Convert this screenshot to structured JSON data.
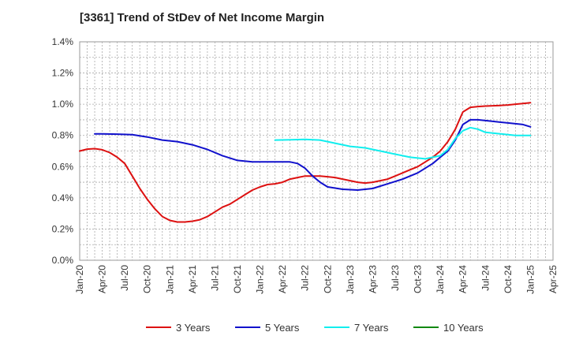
{
  "chart_data": {
    "type": "line",
    "title": "[3361]  Trend of StDev of Net Income Margin",
    "xlabel": "",
    "ylabel": "",
    "x_range": [
      "2020-01",
      "2025-04"
    ],
    "ylim": [
      0,
      0.014
    ],
    "y_ticks": [
      0,
      0.002,
      0.004,
      0.006,
      0.008,
      0.01,
      0.012,
      0.014
    ],
    "y_tick_labels": [
      "0.0%",
      "0.2%",
      "0.4%",
      "0.6%",
      "0.8%",
      "1.0%",
      "1.2%",
      "1.4%"
    ],
    "x_ticks": [
      "2020-01",
      "2020-04",
      "2020-07",
      "2020-10",
      "2021-01",
      "2021-04",
      "2021-07",
      "2021-10",
      "2022-01",
      "2022-04",
      "2022-07",
      "2022-10",
      "2023-01",
      "2023-04",
      "2023-07",
      "2023-10",
      "2024-01",
      "2024-04",
      "2024-07",
      "2024-10",
      "2025-01",
      "2025-04"
    ],
    "x_tick_labels": [
      "Jan-20",
      "Apr-20",
      "Jul-20",
      "Oct-20",
      "Jan-21",
      "Apr-21",
      "Jul-21",
      "Oct-21",
      "Jan-22",
      "Apr-22",
      "Jul-22",
      "Oct-22",
      "Jan-23",
      "Apr-23",
      "Jul-23",
      "Oct-23",
      "Jan-24",
      "Apr-24",
      "Jul-24",
      "Oct-24",
      "Jan-25",
      "Apr-25"
    ],
    "grid": true,
    "legend_position": "bottom",
    "series": [
      {
        "name": "3 Years",
        "color": "#dd1111",
        "points": [
          [
            "2020-01",
            0.007
          ],
          [
            "2020-02",
            0.00712
          ],
          [
            "2020-03",
            0.00715
          ],
          [
            "2020-04",
            0.00708
          ],
          [
            "2020-05",
            0.0069
          ],
          [
            "2020-06",
            0.0066
          ],
          [
            "2020-07",
            0.0062
          ],
          [
            "2020-08",
            0.0054
          ],
          [
            "2020-09",
            0.0046
          ],
          [
            "2020-10",
            0.0039
          ],
          [
            "2020-11",
            0.0033
          ],
          [
            "2020-12",
            0.0028
          ],
          [
            "2021-01",
            0.00255
          ],
          [
            "2021-02",
            0.00245
          ],
          [
            "2021-03",
            0.00245
          ],
          [
            "2021-04",
            0.0025
          ],
          [
            "2021-05",
            0.0026
          ],
          [
            "2021-06",
            0.0028
          ],
          [
            "2021-07",
            0.0031
          ],
          [
            "2021-08",
            0.0034
          ],
          [
            "2021-09",
            0.0036
          ],
          [
            "2021-10",
            0.0039
          ],
          [
            "2021-11",
            0.0042
          ],
          [
            "2021-12",
            0.0045
          ],
          [
            "2022-01",
            0.0047
          ],
          [
            "2022-02",
            0.00485
          ],
          [
            "2022-03",
            0.0049
          ],
          [
            "2022-04",
            0.005
          ],
          [
            "2022-05",
            0.0052
          ],
          [
            "2022-06",
            0.0053
          ],
          [
            "2022-07",
            0.0054
          ],
          [
            "2022-08",
            0.0054
          ],
          [
            "2022-09",
            0.0054
          ],
          [
            "2022-10",
            0.00535
          ],
          [
            "2022-11",
            0.0053
          ],
          [
            "2022-12",
            0.0052
          ],
          [
            "2023-01",
            0.0051
          ],
          [
            "2023-02",
            0.005
          ],
          [
            "2023-03",
            0.00495
          ],
          [
            "2023-04",
            0.005
          ],
          [
            "2023-05",
            0.0051
          ],
          [
            "2023-06",
            0.0052
          ],
          [
            "2023-07",
            0.0054
          ],
          [
            "2023-08",
            0.0056
          ],
          [
            "2023-09",
            0.0058
          ],
          [
            "2023-10",
            0.006
          ],
          [
            "2023-11",
            0.0063
          ],
          [
            "2023-12",
            0.0066
          ],
          [
            "2024-01",
            0.007
          ],
          [
            "2024-02",
            0.0076
          ],
          [
            "2024-03",
            0.0084
          ],
          [
            "2024-04",
            0.0095
          ],
          [
            "2024-05",
            0.0098
          ],
          [
            "2024-06",
            0.00985
          ],
          [
            "2024-07",
            0.00988
          ],
          [
            "2024-08",
            0.0099
          ],
          [
            "2024-09",
            0.00992
          ],
          [
            "2024-10",
            0.00995
          ],
          [
            "2024-11",
            0.01
          ],
          [
            "2024-12",
            0.01005
          ],
          [
            "2025-01",
            0.0101
          ]
        ]
      },
      {
        "name": "5 Years",
        "color": "#1111cc",
        "points": [
          [
            "2020-03",
            0.0081
          ],
          [
            "2020-04",
            0.0081
          ],
          [
            "2020-06",
            0.00808
          ],
          [
            "2020-08",
            0.00805
          ],
          [
            "2020-10",
            0.0079
          ],
          [
            "2020-12",
            0.0077
          ],
          [
            "2021-02",
            0.0076
          ],
          [
            "2021-04",
            0.0074
          ],
          [
            "2021-06",
            0.0071
          ],
          [
            "2021-08",
            0.0067
          ],
          [
            "2021-10",
            0.0064
          ],
          [
            "2021-12",
            0.0063
          ],
          [
            "2022-02",
            0.0063
          ],
          [
            "2022-04",
            0.0063
          ],
          [
            "2022-05",
            0.0063
          ],
          [
            "2022-06",
            0.0062
          ],
          [
            "2022-07",
            0.0059
          ],
          [
            "2022-08",
            0.0054
          ],
          [
            "2022-09",
            0.005
          ],
          [
            "2022-10",
            0.0047
          ],
          [
            "2022-12",
            0.00455
          ],
          [
            "2023-02",
            0.0045
          ],
          [
            "2023-04",
            0.0046
          ],
          [
            "2023-06",
            0.0049
          ],
          [
            "2023-08",
            0.0052
          ],
          [
            "2023-10",
            0.0056
          ],
          [
            "2023-12",
            0.0062
          ],
          [
            "2024-01",
            0.0066
          ],
          [
            "2024-02",
            0.007
          ],
          [
            "2024-03",
            0.0077
          ],
          [
            "2024-04",
            0.0087
          ],
          [
            "2024-05",
            0.009
          ],
          [
            "2024-06",
            0.009
          ],
          [
            "2024-08",
            0.0089
          ],
          [
            "2024-10",
            0.0088
          ],
          [
            "2024-12",
            0.0087
          ],
          [
            "2025-01",
            0.00855
          ]
        ]
      },
      {
        "name": "7 Years",
        "color": "#11eeee",
        "points": [
          [
            "2022-03",
            0.0077
          ],
          [
            "2022-05",
            0.00772
          ],
          [
            "2022-07",
            0.00775
          ],
          [
            "2022-09",
            0.0077
          ],
          [
            "2022-11",
            0.0075
          ],
          [
            "2023-01",
            0.0073
          ],
          [
            "2023-03",
            0.0072
          ],
          [
            "2023-05",
            0.007
          ],
          [
            "2023-07",
            0.0068
          ],
          [
            "2023-09",
            0.0066
          ],
          [
            "2023-11",
            0.0065
          ],
          [
            "2024-01",
            0.0067
          ],
          [
            "2024-02",
            0.0071
          ],
          [
            "2024-03",
            0.0078
          ],
          [
            "2024-04",
            0.0083
          ],
          [
            "2024-05",
            0.0085
          ],
          [
            "2024-06",
            0.0084
          ],
          [
            "2024-07",
            0.0082
          ],
          [
            "2024-09",
            0.0081
          ],
          [
            "2024-11",
            0.008
          ],
          [
            "2025-01",
            0.008
          ]
        ]
      },
      {
        "name": "10 Years",
        "color": "#118811",
        "points": []
      }
    ]
  }
}
